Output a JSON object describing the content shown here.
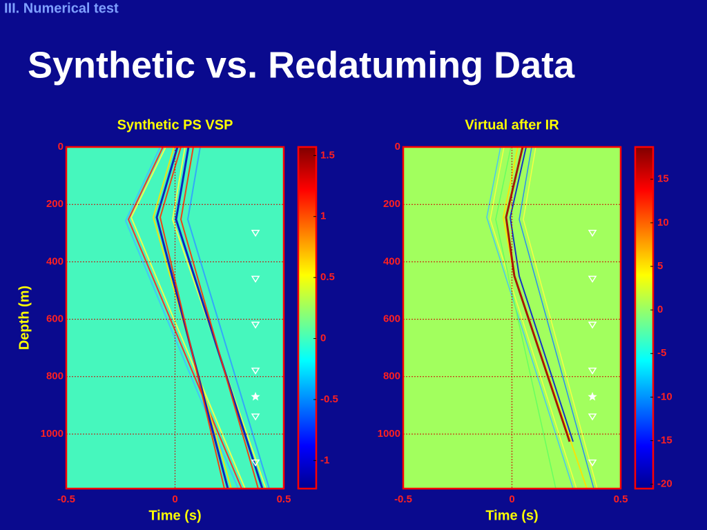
{
  "header": {
    "section": "III. Numerical  test",
    "title": "Synthetic vs. Redatuming Data"
  },
  "chart_data": [
    {
      "type": "heatmap",
      "title": "Synthetic PS VSP",
      "xlabel": "Time (s)",
      "ylabel": "Depth (m)",
      "xlim": [
        -0.5,
        0.5
      ],
      "xticks": [
        -0.5,
        0,
        0.5
      ],
      "ylim": [
        0,
        1190
      ],
      "y_inverted": true,
      "yticks": [
        0,
        200,
        400,
        600,
        800,
        1000
      ],
      "grid": true,
      "background": "#46f7bd",
      "colorbar": {
        "lim": [
          -1.23,
          1.57
        ],
        "ticks": [
          -1,
          -0.5,
          0,
          0.5,
          1,
          1.5
        ]
      },
      "receivers": {
        "x": [
          0.37,
          0.37,
          0.37,
          0.37,
          0.37,
          0.37
        ],
        "y": [
          300,
          460,
          620,
          780,
          940,
          1100
        ]
      },
      "source": {
        "x": 0.37,
        "y": 870
      }
    },
    {
      "type": "heatmap",
      "title": "Virtual after IR",
      "xlabel": "Time (s)",
      "xlim": [
        -0.5,
        0.5
      ],
      "xticks": [
        -0.5,
        0,
        0.5
      ],
      "ylim": [
        0,
        1190
      ],
      "y_inverted": true,
      "yticks": [
        0,
        200,
        400,
        600,
        800,
        1000
      ],
      "grid": true,
      "background": "#a2ff5e",
      "colorbar": {
        "lim": [
          -20.5,
          18.7
        ],
        "ticks": [
          -20,
          -15,
          -10,
          -5,
          0,
          5,
          10,
          15
        ]
      },
      "receivers": {
        "x": [
          0.37,
          0.37,
          0.37,
          0.37,
          0.37,
          0.37
        ],
        "y": [
          300,
          460,
          620,
          780,
          940,
          1100
        ]
      },
      "source": {
        "x": 0.37,
        "y": 870
      }
    }
  ]
}
